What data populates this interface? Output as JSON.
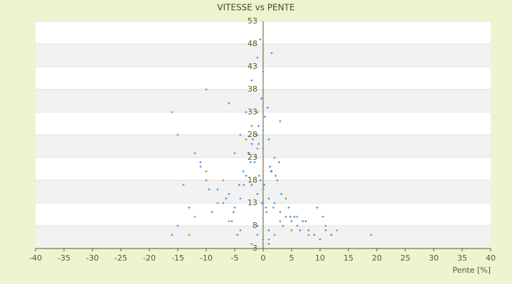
{
  "chart_data": {
    "type": "scatter",
    "title": "VITESSE vs PENTE",
    "x_label": "Pente [%]",
    "xlim": [
      -40,
      40
    ],
    "xticks": [
      -40,
      -35,
      -30,
      -25,
      -20,
      -15,
      -10,
      -5,
      0,
      5,
      10,
      15,
      20,
      25,
      30,
      35,
      40
    ],
    "ylim": [
      3,
      53
    ],
    "yticks": [
      3,
      8,
      13,
      18,
      23,
      28,
      33,
      38,
      43,
      48,
      53
    ],
    "grid": true,
    "series": [
      {
        "color": "#2f86d6",
        "x": [
          -1,
          0,
          1,
          -0.5,
          0.5,
          2,
          -2,
          3,
          -3,
          1.5,
          -1.5,
          4,
          -4,
          5,
          -5,
          6,
          7,
          8,
          9,
          10,
          11,
          12,
          -6,
          -7,
          -8,
          -9,
          -10,
          -11,
          -12,
          0,
          1,
          -1,
          2,
          -2,
          0.3,
          -0.3,
          0.8,
          -0.8,
          3.5,
          -3.5,
          2.5,
          -2.5,
          4.5,
          5.5,
          6.5,
          -4.5,
          -5.5,
          0,
          1,
          -1,
          -1,
          -0.5,
          0,
          1.5,
          -2,
          -3,
          3,
          0,
          1.2,
          -0.7,
          -1.2,
          0.2,
          1.8,
          -2.6,
          2.8,
          3.2,
          -4.2,
          4.8,
          -5.2,
          7.5,
          -6.5,
          -10,
          -6,
          -4,
          -1.8,
          1.4,
          -2.2,
          2.2,
          -3.4,
          -0.2,
          0.6,
          -1,
          1,
          9.5,
          10.5,
          -13,
          -15,
          -11,
          -9.5,
          -0.8
        ],
        "values": [
          15,
          16,
          14,
          18,
          12,
          13,
          17,
          11,
          19,
          20,
          22,
          10,
          14,
          9,
          12,
          8,
          9,
          7,
          6,
          5,
          7,
          6,
          15,
          13,
          16,
          11,
          18,
          21,
          24,
          25,
          27,
          28,
          23,
          26,
          32,
          36,
          34,
          30,
          8,
          20,
          18,
          24,
          12,
          10,
          7,
          6,
          9,
          5,
          4,
          6,
          45,
          49,
          42,
          46,
          40,
          33,
          31,
          29,
          21,
          19,
          23,
          17,
          12,
          24,
          22,
          15,
          17,
          10,
          11,
          9,
          14,
          38,
          35,
          28,
          27,
          20,
          22,
          19,
          17,
          13,
          11,
          8,
          7,
          12,
          10,
          12,
          8,
          22,
          16,
          26
        ]
      },
      {
        "color": "#9c8a1e",
        "x": [
          -16,
          -13,
          -12,
          -14,
          -16,
          -15,
          -10,
          -8,
          -6,
          -4,
          -3,
          -2,
          -1,
          0,
          1,
          2,
          5,
          8,
          12,
          19,
          11,
          13,
          6,
          4,
          -5,
          -7,
          3,
          -1,
          0,
          -2
        ],
        "values": [
          6,
          6,
          10,
          17,
          33,
          28,
          20,
          13,
          9,
          7,
          27,
          30,
          33,
          4,
          5,
          6,
          7,
          6,
          6,
          6,
          8,
          7,
          10,
          14,
          24,
          18,
          9,
          25,
          20,
          4
        ]
      }
    ]
  }
}
